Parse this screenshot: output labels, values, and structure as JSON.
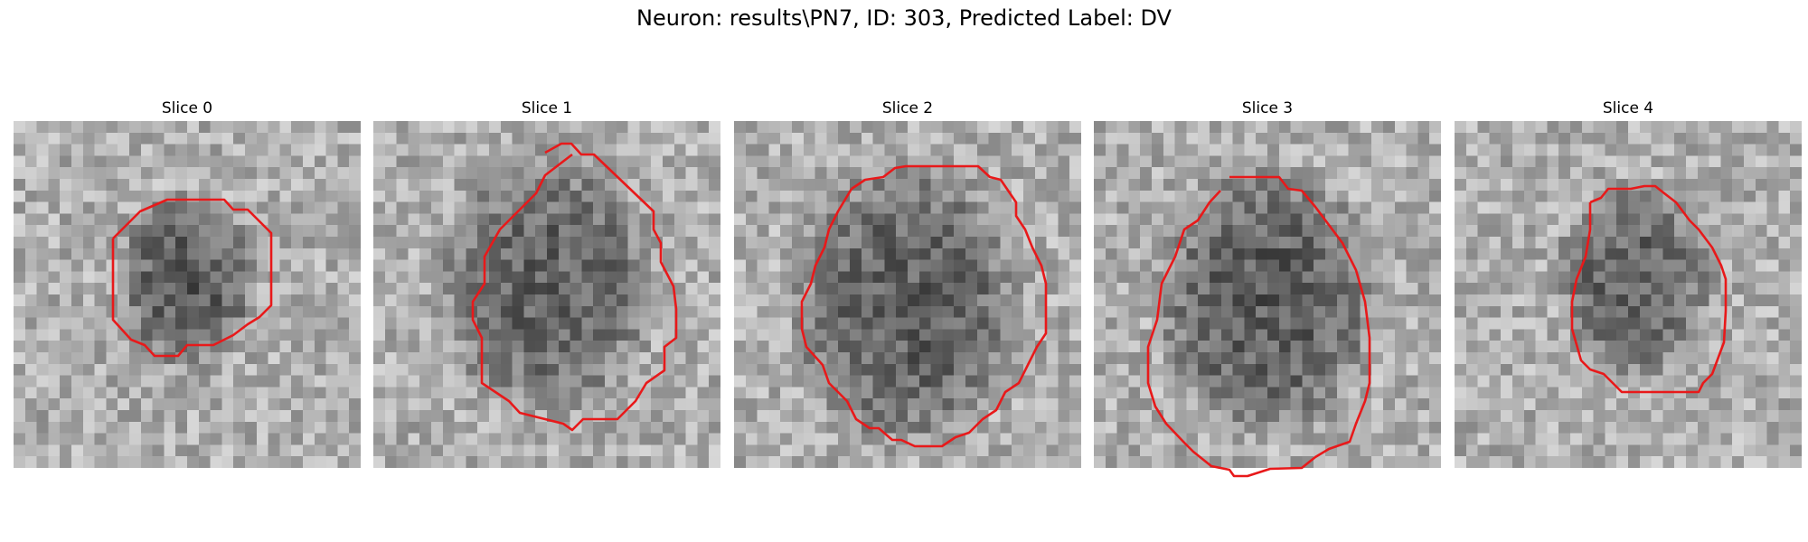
{
  "figure": {
    "title": "Neuron: results\\PN7, ID: 303, Predicted Label: DV",
    "contour_color": "#e8191a",
    "colormap": "gray"
  },
  "slices": [
    {
      "title": "Slice 0",
      "cell_center": [
        0.5,
        0.46
      ],
      "cell_radius": [
        0.22,
        0.28
      ],
      "darkness": 0.55
    },
    {
      "title": "Slice 1",
      "cell_center": [
        0.5,
        0.47
      ],
      "cell_radius": [
        0.34,
        0.4
      ],
      "darkness": 0.5
    },
    {
      "title": "Slice 2",
      "cell_center": [
        0.5,
        0.53
      ],
      "cell_radius": [
        0.36,
        0.44
      ],
      "darkness": 0.52
    },
    {
      "title": "Slice 3",
      "cell_center": [
        0.5,
        0.52
      ],
      "cell_radius": [
        0.34,
        0.42
      ],
      "darkness": 0.55
    },
    {
      "title": "Slice 4",
      "cell_center": [
        0.52,
        0.46
      ],
      "cell_radius": [
        0.24,
        0.3
      ],
      "darkness": 0.5
    }
  ]
}
